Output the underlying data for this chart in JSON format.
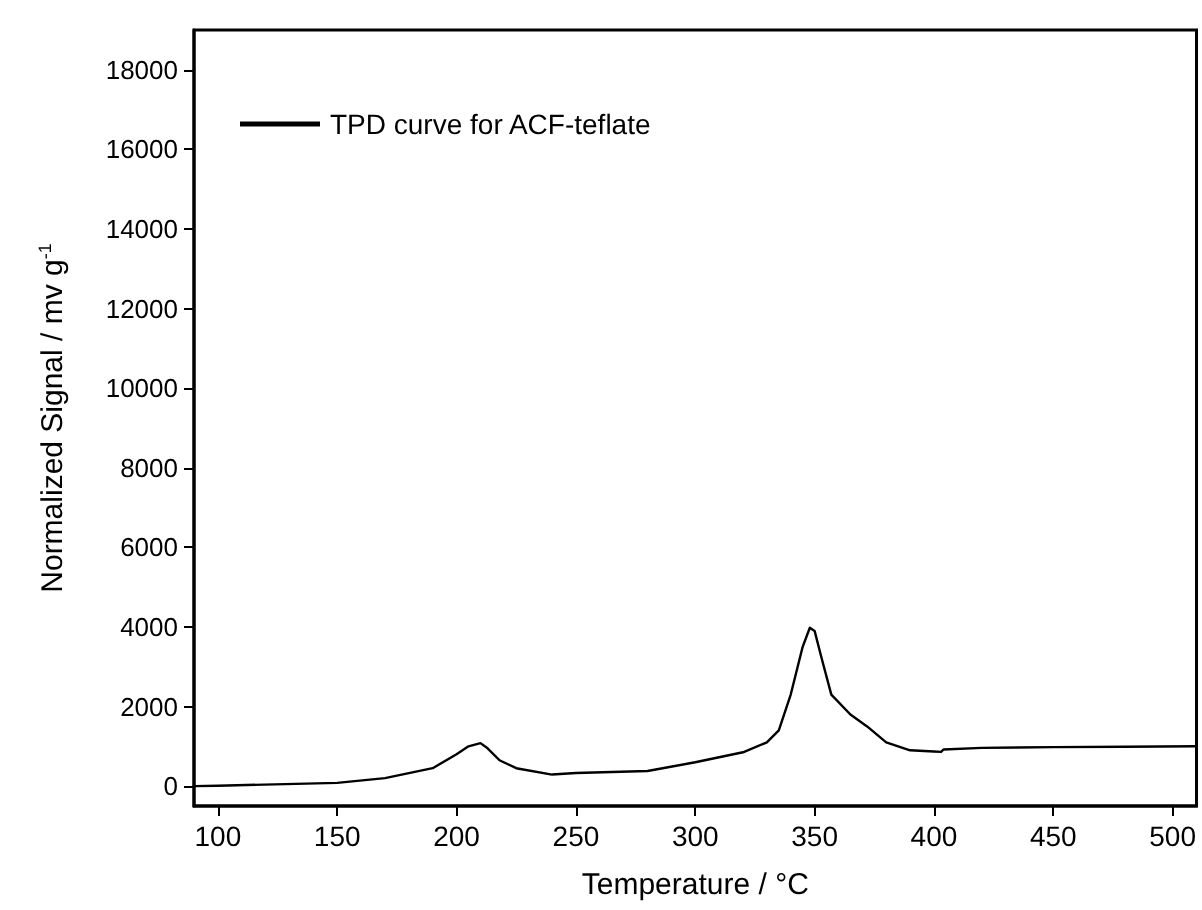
{
  "chart_data": {
    "type": "line",
    "xlabel": "Temperature / °C",
    "ylabel": "Normalized Signal / mv g$^{-1}$",
    "x": [
      90,
      100,
      150,
      170,
      190,
      200,
      205,
      210,
      213,
      218,
      225,
      240,
      250,
      280,
      300,
      320,
      330,
      335,
      340,
      345,
      348,
      350,
      353,
      357,
      365,
      372,
      380,
      390,
      400,
      403,
      404,
      420,
      450,
      480,
      510
    ],
    "series": [
      {
        "name": "TPD curve for ACF-teflate",
        "color": "#000000",
        "values": [
          0,
          10,
          80,
          200,
          450,
          800,
          1000,
          1080,
          950,
          650,
          450,
          290,
          330,
          380,
          600,
          850,
          1100,
          1400,
          2300,
          3500,
          3980,
          3900,
          3200,
          2300,
          1800,
          1500,
          1100,
          900,
          870,
          860,
          920,
          960,
          980,
          990,
          1000
        ]
      }
    ],
    "xlim": [
      90,
      510
    ],
    "xticks": [
      100,
      150,
      200,
      250,
      300,
      350,
      400,
      450,
      500
    ],
    "ylim": [
      -500,
      19000
    ],
    "yticks": [
      0,
      2000,
      4000,
      6000,
      8000,
      10000,
      12000,
      14000,
      16000,
      18000
    ],
    "grid": false,
    "legend": "top left",
    "marker": "none",
    "line_style": "solid"
  }
}
